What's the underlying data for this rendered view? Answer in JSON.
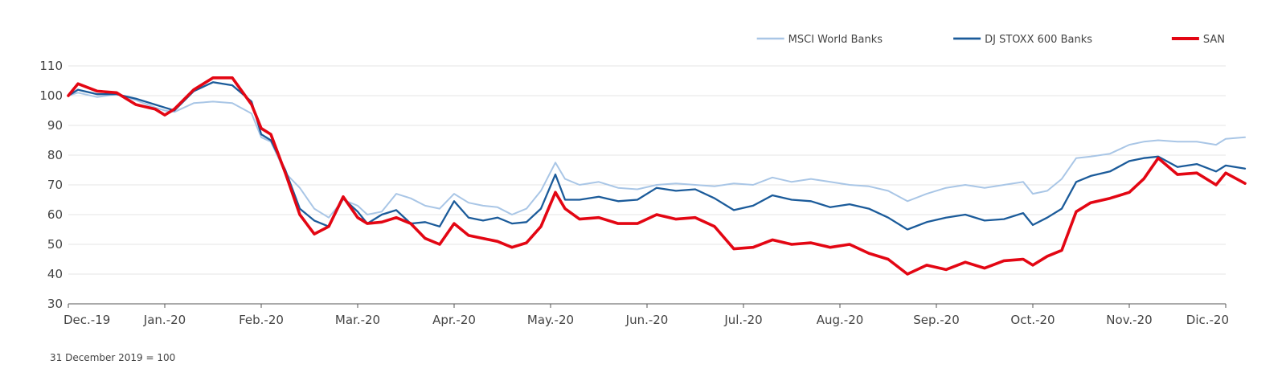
{
  "chart_data": {
    "type": "line",
    "ylim": [
      30,
      110
    ],
    "y_ticks": [
      30,
      40,
      50,
      60,
      70,
      80,
      90,
      100,
      110
    ],
    "x_labels": [
      "Dec.-19",
      "Jan.-20",
      "Feb.-20",
      "Mar.-20",
      "Apr.-20",
      "May.-20",
      "Jun.-20",
      "Jul.-20",
      "Aug.-20",
      "Sep.-20",
      "Oct.-20",
      "Nov.-20",
      "Dic.-20"
    ],
    "grid": true,
    "legend_position": "top-right",
    "footnote": "31 December 2019 = 100",
    "series": [
      {
        "name": "MSCI World Banks",
        "color": "#a9c6e6",
        "points": [
          [
            0,
            100
          ],
          [
            0.1,
            101
          ],
          [
            0.3,
            99.5
          ],
          [
            0.5,
            100.5
          ],
          [
            0.7,
            98.5
          ],
          [
            0.9,
            96
          ],
          [
            1.0,
            95
          ],
          [
            1.1,
            94.5
          ],
          [
            1.3,
            97.5
          ],
          [
            1.5,
            98
          ],
          [
            1.7,
            97.5
          ],
          [
            1.9,
            94
          ],
          [
            2.0,
            86
          ],
          [
            2.1,
            84.5
          ],
          [
            2.25,
            74
          ],
          [
            2.4,
            69
          ],
          [
            2.55,
            62
          ],
          [
            2.7,
            59
          ],
          [
            2.85,
            65
          ],
          [
            3.0,
            63
          ],
          [
            3.1,
            60
          ],
          [
            3.25,
            61
          ],
          [
            3.4,
            67
          ],
          [
            3.55,
            65.5
          ],
          [
            3.7,
            63
          ],
          [
            3.85,
            62
          ],
          [
            4.0,
            67
          ],
          [
            4.15,
            64
          ],
          [
            4.3,
            63
          ],
          [
            4.45,
            62.5
          ],
          [
            4.6,
            60
          ],
          [
            4.75,
            62
          ],
          [
            4.9,
            68
          ],
          [
            5.05,
            77.5
          ],
          [
            5.15,
            72
          ],
          [
            5.3,
            70
          ],
          [
            5.5,
            71
          ],
          [
            5.7,
            69
          ],
          [
            5.9,
            68.5
          ],
          [
            6.1,
            70
          ],
          [
            6.3,
            70.5
          ],
          [
            6.5,
            70
          ],
          [
            6.7,
            69.5
          ],
          [
            6.9,
            70.5
          ],
          [
            7.1,
            70
          ],
          [
            7.3,
            72.5
          ],
          [
            7.5,
            71
          ],
          [
            7.7,
            72
          ],
          [
            7.9,
            71
          ],
          [
            8.1,
            70
          ],
          [
            8.3,
            69.5
          ],
          [
            8.5,
            68
          ],
          [
            8.7,
            64.5
          ],
          [
            8.9,
            67
          ],
          [
            9.1,
            69
          ],
          [
            9.3,
            70
          ],
          [
            9.5,
            69
          ],
          [
            9.7,
            70
          ],
          [
            9.9,
            71
          ],
          [
            10.0,
            67
          ],
          [
            10.15,
            68
          ],
          [
            10.3,
            72
          ],
          [
            10.45,
            79
          ],
          [
            10.6,
            79.5
          ],
          [
            10.8,
            80.5
          ],
          [
            11.0,
            83.5
          ],
          [
            11.15,
            84.5
          ],
          [
            11.3,
            85
          ],
          [
            11.5,
            84.5
          ],
          [
            11.7,
            84.5
          ],
          [
            11.9,
            83.5
          ],
          [
            12.0,
            85.5
          ],
          [
            12.2,
            86
          ]
        ]
      },
      {
        "name": "DJ STOXX 600 Banks",
        "color": "#1b5b9a",
        "points": [
          [
            0,
            100
          ],
          [
            0.1,
            102
          ],
          [
            0.3,
            100.5
          ],
          [
            0.5,
            100.5
          ],
          [
            0.7,
            99
          ],
          [
            0.9,
            97
          ],
          [
            1.0,
            96
          ],
          [
            1.1,
            95
          ],
          [
            1.3,
            101.5
          ],
          [
            1.5,
            104.5
          ],
          [
            1.7,
            103.5
          ],
          [
            1.9,
            98
          ],
          [
            2.0,
            87
          ],
          [
            2.1,
            85
          ],
          [
            2.25,
            75
          ],
          [
            2.4,
            62
          ],
          [
            2.55,
            58
          ],
          [
            2.7,
            56
          ],
          [
            2.85,
            65.5
          ],
          [
            3.0,
            61
          ],
          [
            3.1,
            57
          ],
          [
            3.25,
            60
          ],
          [
            3.4,
            61.5
          ],
          [
            3.55,
            57
          ],
          [
            3.7,
            57.5
          ],
          [
            3.85,
            56
          ],
          [
            4.0,
            64.5
          ],
          [
            4.15,
            59
          ],
          [
            4.3,
            58
          ],
          [
            4.45,
            59
          ],
          [
            4.6,
            57
          ],
          [
            4.75,
            57.5
          ],
          [
            4.9,
            62
          ],
          [
            5.05,
            73.5
          ],
          [
            5.15,
            65
          ],
          [
            5.3,
            65
          ],
          [
            5.5,
            66
          ],
          [
            5.7,
            64.5
          ],
          [
            5.9,
            65
          ],
          [
            6.1,
            69
          ],
          [
            6.3,
            68
          ],
          [
            6.5,
            68.5
          ],
          [
            6.7,
            65.5
          ],
          [
            6.9,
            61.5
          ],
          [
            7.1,
            63
          ],
          [
            7.3,
            66.5
          ],
          [
            7.5,
            65
          ],
          [
            7.7,
            64.5
          ],
          [
            7.9,
            62.5
          ],
          [
            8.1,
            63.5
          ],
          [
            8.3,
            62
          ],
          [
            8.5,
            59
          ],
          [
            8.7,
            55
          ],
          [
            8.9,
            57.5
          ],
          [
            9.1,
            59
          ],
          [
            9.3,
            60
          ],
          [
            9.5,
            58
          ],
          [
            9.7,
            58.5
          ],
          [
            9.9,
            60.5
          ],
          [
            10.0,
            56.5
          ],
          [
            10.15,
            59
          ],
          [
            10.3,
            62
          ],
          [
            10.45,
            71
          ],
          [
            10.6,
            73
          ],
          [
            10.8,
            74.5
          ],
          [
            11.0,
            78
          ],
          [
            11.15,
            79
          ],
          [
            11.3,
            79.5
          ],
          [
            11.5,
            76
          ],
          [
            11.7,
            77
          ],
          [
            11.9,
            74.5
          ],
          [
            12.0,
            76.5
          ],
          [
            12.2,
            75.5
          ]
        ]
      },
      {
        "name": "SAN",
        "color": "#e30613",
        "points": [
          [
            0,
            100
          ],
          [
            0.1,
            104
          ],
          [
            0.3,
            101.5
          ],
          [
            0.5,
            101
          ],
          [
            0.7,
            97
          ],
          [
            0.9,
            95.5
          ],
          [
            1.0,
            93.5
          ],
          [
            1.1,
            95.5
          ],
          [
            1.3,
            102
          ],
          [
            1.5,
            106
          ],
          [
            1.7,
            106
          ],
          [
            1.9,
            97
          ],
          [
            2.0,
            89
          ],
          [
            2.1,
            87
          ],
          [
            2.25,
            74
          ],
          [
            2.4,
            60
          ],
          [
            2.55,
            53.5
          ],
          [
            2.7,
            56
          ],
          [
            2.85,
            66
          ],
          [
            3.0,
            59
          ],
          [
            3.1,
            57
          ],
          [
            3.25,
            57.5
          ],
          [
            3.4,
            59
          ],
          [
            3.55,
            57
          ],
          [
            3.7,
            52
          ],
          [
            3.85,
            50
          ],
          [
            4.0,
            57
          ],
          [
            4.15,
            53
          ],
          [
            4.3,
            52
          ],
          [
            4.45,
            51
          ],
          [
            4.6,
            49
          ],
          [
            4.75,
            50.5
          ],
          [
            4.9,
            56
          ],
          [
            5.05,
            67.5
          ],
          [
            5.15,
            62
          ],
          [
            5.3,
            58.5
          ],
          [
            5.5,
            59
          ],
          [
            5.7,
            57
          ],
          [
            5.9,
            57
          ],
          [
            6.1,
            60
          ],
          [
            6.3,
            58.5
          ],
          [
            6.5,
            59
          ],
          [
            6.7,
            56
          ],
          [
            6.9,
            48.5
          ],
          [
            7.1,
            49
          ],
          [
            7.3,
            51.5
          ],
          [
            7.5,
            50
          ],
          [
            7.7,
            50.5
          ],
          [
            7.9,
            49
          ],
          [
            8.1,
            50
          ],
          [
            8.3,
            47
          ],
          [
            8.5,
            45
          ],
          [
            8.7,
            40
          ],
          [
            8.9,
            43
          ],
          [
            9.1,
            41.5
          ],
          [
            9.3,
            44
          ],
          [
            9.5,
            42
          ],
          [
            9.7,
            44.5
          ],
          [
            9.9,
            45
          ],
          [
            10.0,
            43
          ],
          [
            10.15,
            46
          ],
          [
            10.3,
            48
          ],
          [
            10.45,
            61
          ],
          [
            10.6,
            64
          ],
          [
            10.8,
            65.5
          ],
          [
            11.0,
            67.5
          ],
          [
            11.15,
            72
          ],
          [
            11.3,
            79
          ],
          [
            11.5,
            73.5
          ],
          [
            11.7,
            74
          ],
          [
            11.9,
            70
          ],
          [
            12.0,
            74
          ],
          [
            12.2,
            70.5
          ]
        ]
      }
    ]
  }
}
